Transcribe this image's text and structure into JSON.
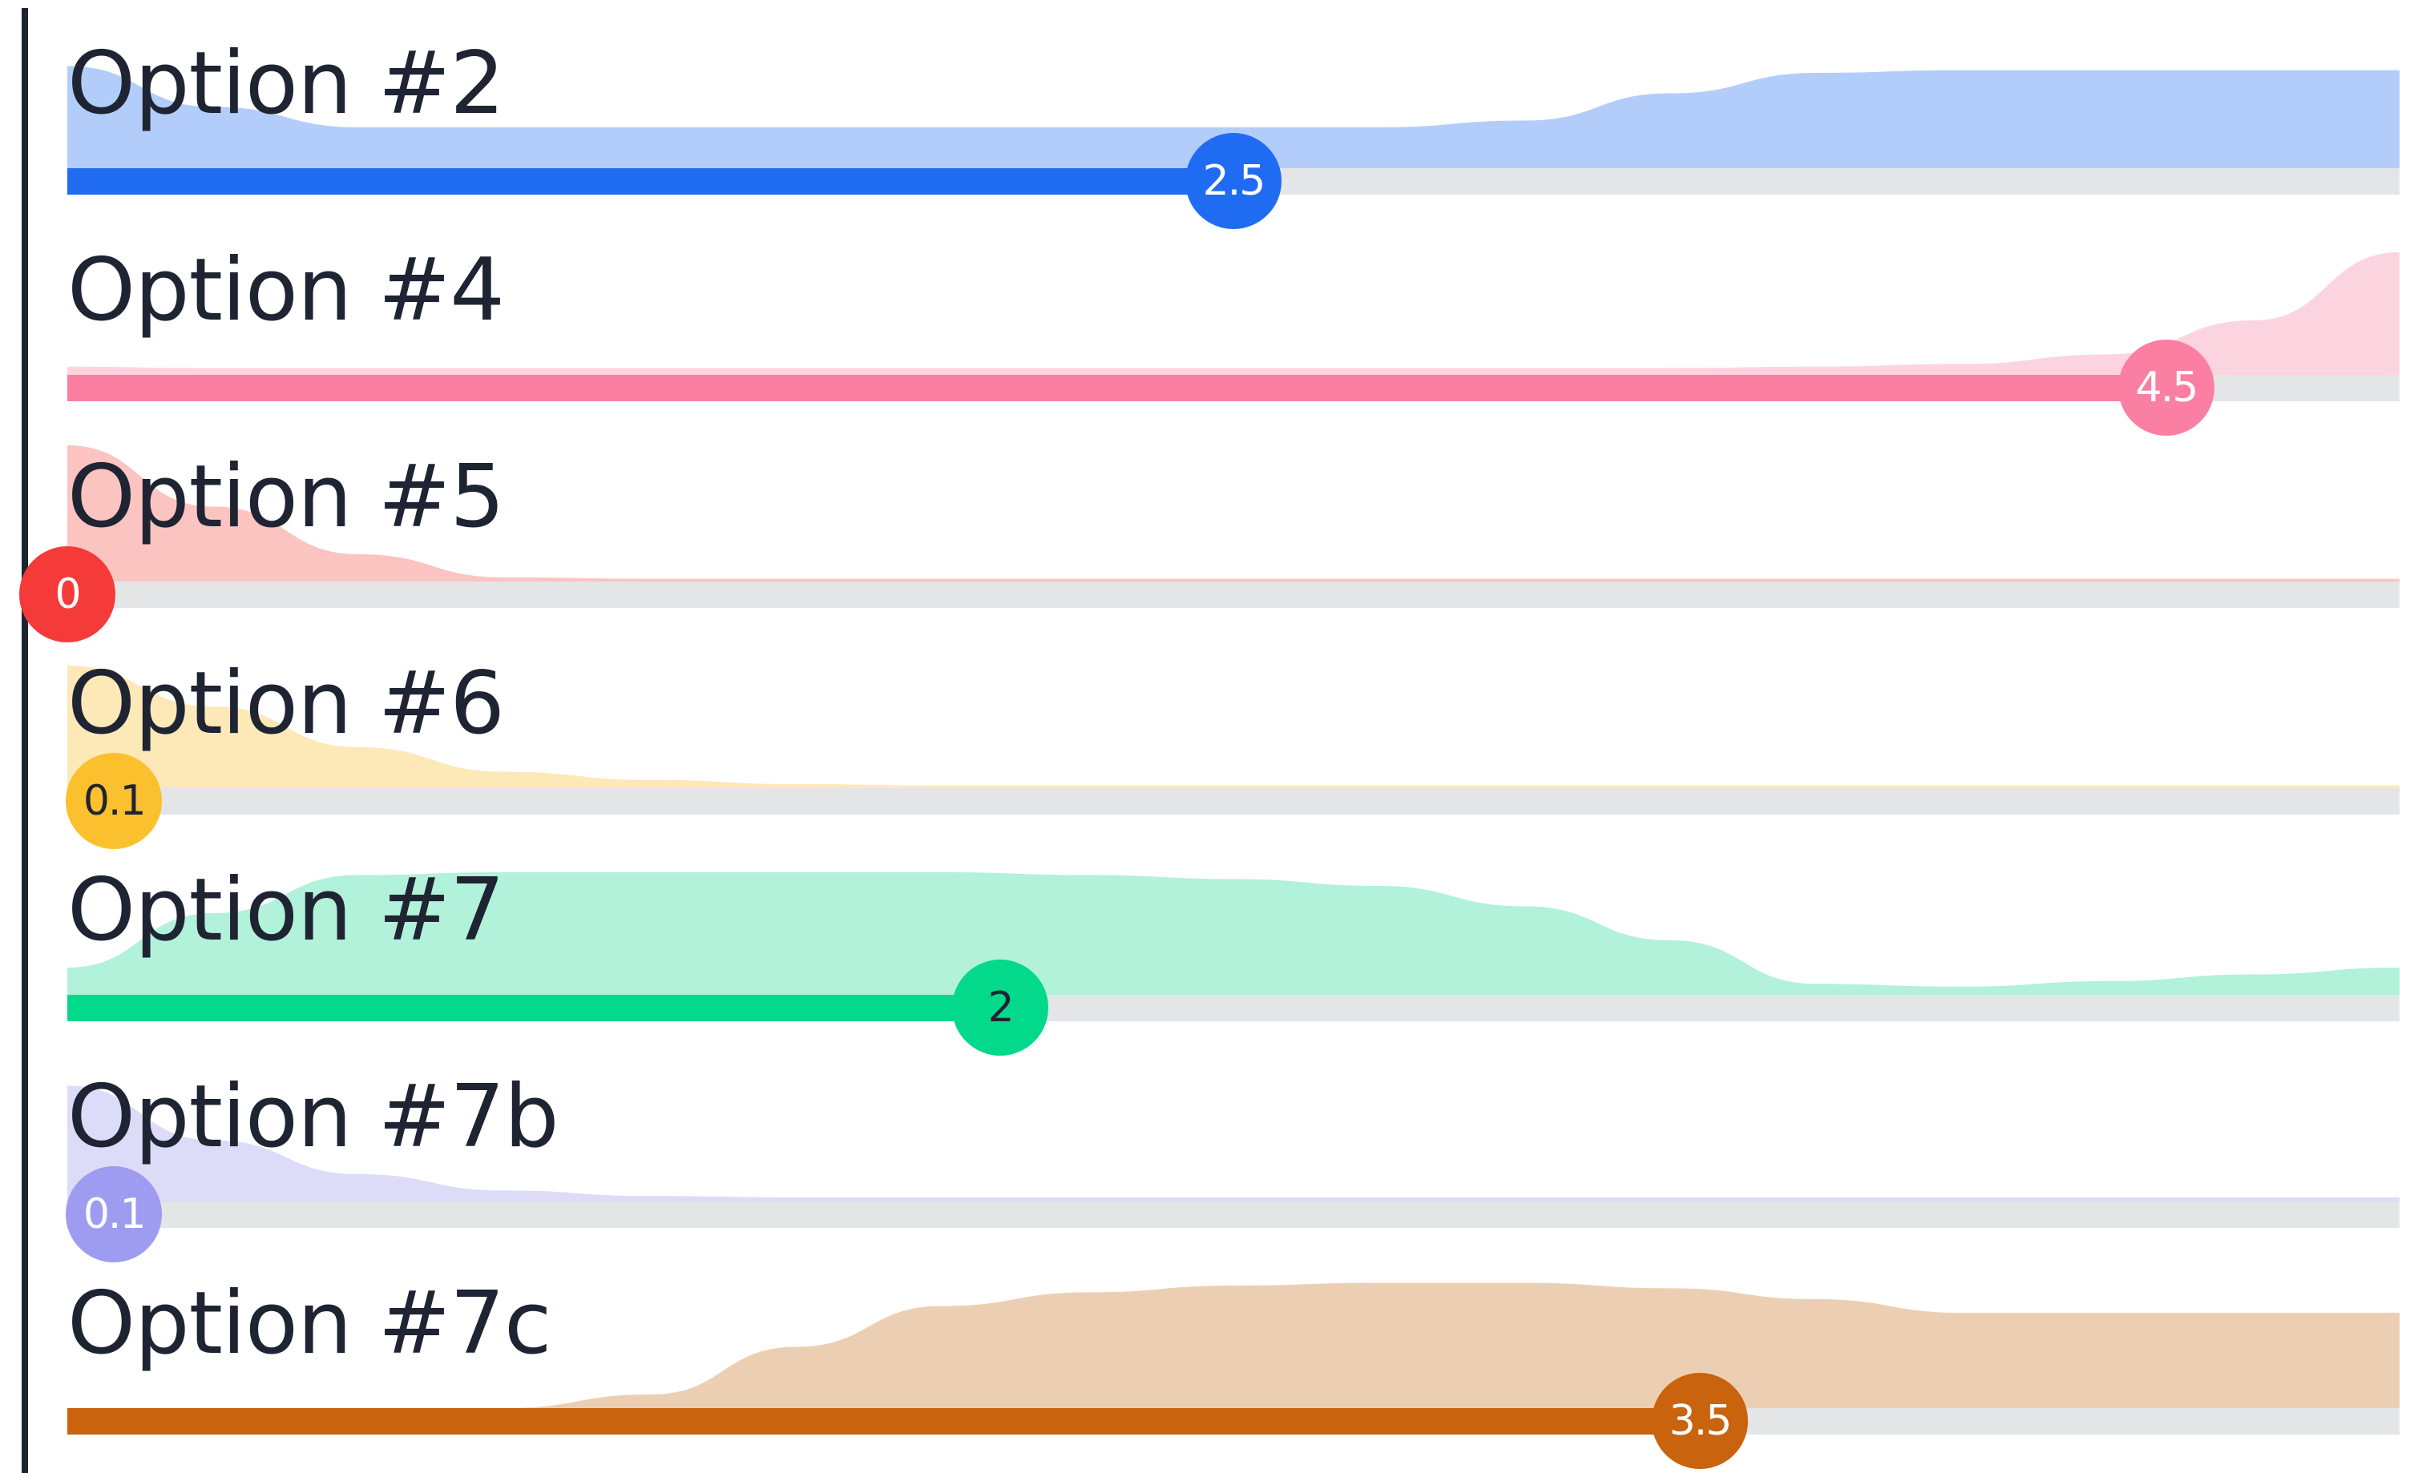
{
  "scale": {
    "min": 0,
    "max": 5
  },
  "sliders": [
    {
      "label": "Option #2",
      "value": 2.5,
      "value_text": "2.5",
      "color": "#1f6cf2",
      "tint": "#b3cdfa",
      "text_color": "#ffffff",
      "distribution": [
        0.75,
        0.45,
        0.3,
        0.3,
        0.3,
        0.3,
        0.3,
        0.3,
        0.3,
        0.3,
        0.35,
        0.55,
        0.7,
        0.72,
        0.72,
        0.72,
        0.72
      ]
    },
    {
      "label": "Option #4",
      "value": 4.5,
      "value_text": "4.5",
      "color": "#fa7fa3",
      "tint": "#fcd4e0",
      "text_color": "#ffffff",
      "distribution": [
        0.06,
        0.05,
        0.05,
        0.05,
        0.05,
        0.05,
        0.05,
        0.05,
        0.05,
        0.05,
        0.05,
        0.05,
        0.06,
        0.08,
        0.15,
        0.4,
        0.9
      ]
    },
    {
      "label": "Option #5",
      "value": 0,
      "value_text": "0",
      "color": "#f53a3a",
      "tint": "#fbc4c0",
      "text_color": "#ffffff",
      "distribution": [
        1.0,
        0.55,
        0.2,
        0.03,
        0.02,
        0.02,
        0.02,
        0.02,
        0.02,
        0.02,
        0.02,
        0.02,
        0.02,
        0.02,
        0.02,
        0.02,
        0.02
      ]
    },
    {
      "label": "Option #6",
      "value": 0.1,
      "value_text": "0.1",
      "color": "#fbc02d",
      "tint": "#fde8b8",
      "text_color": "#1f2433",
      "distribution": [
        0.9,
        0.6,
        0.3,
        0.12,
        0.06,
        0.03,
        0.02,
        0.02,
        0.02,
        0.02,
        0.02,
        0.02,
        0.02,
        0.02,
        0.02,
        0.02,
        0.02
      ]
    },
    {
      "label": "Option #7",
      "value": 2,
      "value_text": "2",
      "color": "#02d98a",
      "tint": "#b2f1da",
      "text_color": "#1f2433",
      "distribution": [
        0.2,
        0.6,
        0.88,
        0.9,
        0.9,
        0.9,
        0.9,
        0.88,
        0.85,
        0.8,
        0.65,
        0.4,
        0.08,
        0.06,
        0.1,
        0.15,
        0.2
      ]
    },
    {
      "label": "Option #7b",
      "value": 0.1,
      "value_text": "0.1",
      "color": "#9d9cf0",
      "tint": "#dcdcf8",
      "text_color": "#ffffff",
      "distribution": [
        0.85,
        0.45,
        0.2,
        0.08,
        0.04,
        0.03,
        0.03,
        0.03,
        0.03,
        0.03,
        0.03,
        0.03,
        0.03,
        0.03,
        0.03,
        0.03,
        0.03
      ]
    },
    {
      "label": "Option #7c",
      "value": 3.5,
      "value_text": "3.5",
      "color": "#c9630e",
      "tint": "#eccfb3",
      "text_color": "#ffffff",
      "distribution": [
        0.0,
        0.0,
        0.0,
        0.0,
        0.1,
        0.45,
        0.75,
        0.85,
        0.9,
        0.92,
        0.92,
        0.88,
        0.8,
        0.7,
        0.7,
        0.7,
        0.7
      ]
    }
  ]
}
